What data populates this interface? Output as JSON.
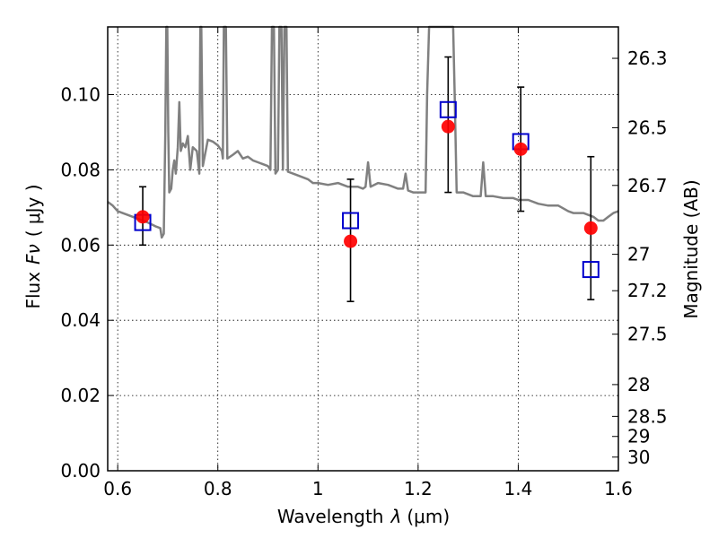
{
  "chart_data": {
    "type": "scatter",
    "xlabel_text": "Wavelength",
    "xlabel_symbol": "λ",
    "xlabel_unit": "(μm)",
    "ylabel_text": "Flux",
    "ylabel_symbol": "Fν",
    "ylabel_unit": "( μJy )",
    "y2label": "Magnitude (AB)",
    "xlim": [
      0.58,
      1.6
    ],
    "ylim": [
      0.0,
      0.118
    ],
    "grid": true,
    "x_ticks": [
      {
        "value": 0.6,
        "label": "0.6"
      },
      {
        "value": 0.8,
        "label": "0.8"
      },
      {
        "value": 1.0,
        "label": "1"
      },
      {
        "value": 1.2,
        "label": "1.2"
      },
      {
        "value": 1.4,
        "label": "1.4"
      },
      {
        "value": 1.6,
        "label": "1.6"
      }
    ],
    "y_ticks": [
      {
        "value": 0.0,
        "label": "0.00"
      },
      {
        "value": 0.02,
        "label": "0.02"
      },
      {
        "value": 0.04,
        "label": "0.04"
      },
      {
        "value": 0.06,
        "label": "0.06"
      },
      {
        "value": 0.08,
        "label": "0.08"
      },
      {
        "value": 0.1,
        "label": "0.10"
      }
    ],
    "y2_ticks": [
      {
        "value": 26.3,
        "label": "26.3"
      },
      {
        "value": 26.5,
        "label": "26.5"
      },
      {
        "value": 26.7,
        "label": "26.7"
      },
      {
        "value": 27.0,
        "label": "27"
      },
      {
        "value": 27.2,
        "label": "27.2"
      },
      {
        "value": 27.5,
        "label": "27.5"
      },
      {
        "value": 28.0,
        "label": "28"
      },
      {
        "value": 28.5,
        "label": "28.5"
      },
      {
        "value": 29.0,
        "label": "29"
      },
      {
        "value": 30.0,
        "label": "30"
      }
    ],
    "series": [
      {
        "marker": "circle",
        "color": "#ff0000",
        "points": [
          {
            "x": 0.65,
            "y": 0.0675,
            "yerr_low": 0.06,
            "yerr_high": 0.0755
          },
          {
            "x": 1.065,
            "y": 0.061,
            "yerr_low": 0.045,
            "yerr_high": 0.0775
          },
          {
            "x": 1.26,
            "y": 0.0915,
            "yerr_low": 0.074,
            "yerr_high": 0.11
          },
          {
            "x": 1.405,
            "y": 0.0855,
            "yerr_low": 0.069,
            "yerr_high": 0.102
          },
          {
            "x": 1.545,
            "y": 0.0645,
            "yerr_low": 0.0455,
            "yerr_high": 0.0835
          }
        ]
      },
      {
        "marker": "square-open",
        "color": "#0000cc",
        "points": [
          {
            "x": 0.65,
            "y": 0.066
          },
          {
            "x": 1.065,
            "y": 0.0665
          },
          {
            "x": 1.26,
            "y": 0.096
          },
          {
            "x": 1.405,
            "y": 0.0875
          },
          {
            "x": 1.545,
            "y": 0.0535
          }
        ]
      },
      {
        "line": true,
        "color": "#808080",
        "points": [
          [
            0.58,
            0.0715
          ],
          [
            0.59,
            0.0705
          ],
          [
            0.6,
            0.069
          ],
          [
            0.62,
            0.068
          ],
          [
            0.64,
            0.067
          ],
          [
            0.66,
            0.066
          ],
          [
            0.675,
            0.065
          ],
          [
            0.685,
            0.0645
          ],
          [
            0.688,
            0.062
          ],
          [
            0.692,
            0.063
          ],
          [
            0.695,
            0.09
          ],
          [
            0.697,
            0.118
          ],
          [
            0.699,
            0.118
          ],
          [
            0.701,
            0.09
          ],
          [
            0.703,
            0.074
          ],
          [
            0.707,
            0.075
          ],
          [
            0.71,
            0.08
          ],
          [
            0.713,
            0.0825
          ],
          [
            0.716,
            0.079
          ],
          [
            0.72,
            0.086
          ],
          [
            0.723,
            0.098
          ],
          [
            0.726,
            0.085
          ],
          [
            0.73,
            0.087
          ],
          [
            0.735,
            0.086
          ],
          [
            0.74,
            0.089
          ],
          [
            0.745,
            0.08
          ],
          [
            0.75,
            0.086
          ],
          [
            0.758,
            0.085
          ],
          [
            0.763,
            0.079
          ],
          [
            0.765,
            0.118
          ],
          [
            0.767,
            0.118
          ],
          [
            0.77,
            0.081
          ],
          [
            0.78,
            0.088
          ],
          [
            0.79,
            0.0875
          ],
          [
            0.8,
            0.0865
          ],
          [
            0.808,
            0.085
          ],
          [
            0.81,
            0.083
          ],
          [
            0.812,
            0.118
          ],
          [
            0.816,
            0.118
          ],
          [
            0.819,
            0.083
          ],
          [
            0.83,
            0.084
          ],
          [
            0.84,
            0.085
          ],
          [
            0.85,
            0.083
          ],
          [
            0.86,
            0.0835
          ],
          [
            0.87,
            0.0825
          ],
          [
            0.88,
            0.082
          ],
          [
            0.89,
            0.0815
          ],
          [
            0.9,
            0.081
          ],
          [
            0.905,
            0.08
          ],
          [
            0.908,
            0.118
          ],
          [
            0.912,
            0.118
          ],
          [
            0.915,
            0.079
          ],
          [
            0.92,
            0.08
          ],
          [
            0.923,
            0.118
          ],
          [
            0.927,
            0.118
          ],
          [
            0.93,
            0.08
          ],
          [
            0.933,
            0.118
          ],
          [
            0.937,
            0.118
          ],
          [
            0.94,
            0.0795
          ],
          [
            0.95,
            0.079
          ],
          [
            0.96,
            0.0785
          ],
          [
            0.97,
            0.078
          ],
          [
            0.98,
            0.0775
          ],
          [
            0.99,
            0.0765
          ],
          [
            1.0,
            0.0765
          ],
          [
            1.02,
            0.076
          ],
          [
            1.04,
            0.0765
          ],
          [
            1.06,
            0.0755
          ],
          [
            1.08,
            0.0755
          ],
          [
            1.09,
            0.075
          ],
          [
            1.095,
            0.0755
          ],
          [
            1.1,
            0.082
          ],
          [
            1.105,
            0.0755
          ],
          [
            1.12,
            0.0765
          ],
          [
            1.14,
            0.076
          ],
          [
            1.15,
            0.0755
          ],
          [
            1.16,
            0.075
          ],
          [
            1.17,
            0.075
          ],
          [
            1.175,
            0.079
          ],
          [
            1.18,
            0.0745
          ],
          [
            1.19,
            0.074
          ],
          [
            1.2,
            0.074
          ],
          [
            1.21,
            0.074
          ],
          [
            1.215,
            0.074
          ],
          [
            1.218,
            0.1
          ],
          [
            1.222,
            0.118
          ],
          [
            1.27,
            0.118
          ],
          [
            1.273,
            0.1
          ],
          [
            1.277,
            0.074
          ],
          [
            1.29,
            0.074
          ],
          [
            1.31,
            0.073
          ],
          [
            1.325,
            0.073
          ],
          [
            1.33,
            0.082
          ],
          [
            1.335,
            0.073
          ],
          [
            1.35,
            0.073
          ],
          [
            1.37,
            0.0725
          ],
          [
            1.39,
            0.0725
          ],
          [
            1.4,
            0.072
          ],
          [
            1.42,
            0.072
          ],
          [
            1.44,
            0.071
          ],
          [
            1.46,
            0.0705
          ],
          [
            1.48,
            0.0705
          ],
          [
            1.5,
            0.069
          ],
          [
            1.51,
            0.0685
          ],
          [
            1.53,
            0.0685
          ],
          [
            1.55,
            0.0675
          ],
          [
            1.56,
            0.0665
          ],
          [
            1.57,
            0.0665
          ],
          [
            1.58,
            0.0675
          ],
          [
            1.59,
            0.0685
          ],
          [
            1.6,
            0.069
          ]
        ]
      }
    ]
  }
}
